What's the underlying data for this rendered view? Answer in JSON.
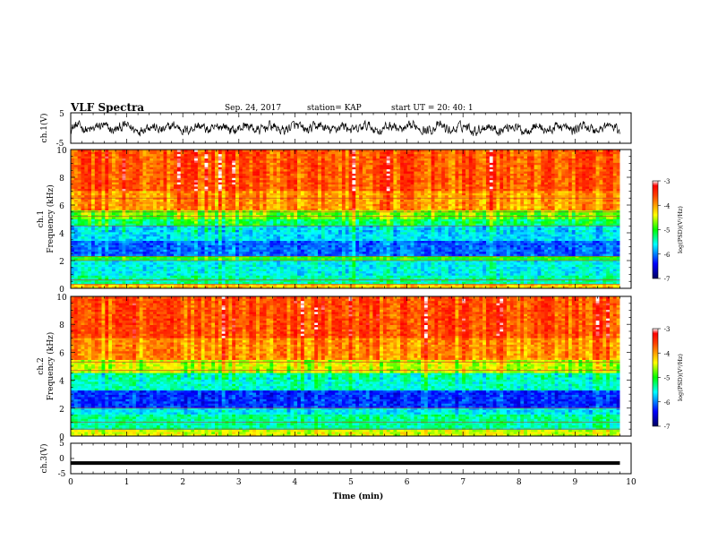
{
  "header": {
    "title": "VLF Spectra",
    "date": "Sep. 24, 2017",
    "station": "station= KAP",
    "start_ut": "start  UT  =    20: 40: 1"
  },
  "colors": {
    "colormap": [
      "#000080",
      "#0000ff",
      "#00ffff",
      "#00ff00",
      "#ffff00",
      "#ff8000",
      "#ff0000",
      "#ffffff"
    ],
    "trace": "#000000"
  },
  "chart_data": [
    {
      "type": "line",
      "id": "ch1-waveform",
      "ylabel": "ch.1(V)",
      "ylim": [
        -5,
        5
      ],
      "yticks": [
        "5",
        "-5"
      ],
      "xlim": [
        0,
        10
      ],
      "note_series": "noisy broadband waveform, amplitude mostly within -2..2 V with excursions toward +2 and -3"
    },
    {
      "type": "heatmap",
      "id": "ch1-spectrogram",
      "ylabel": "ch.1\nFrequency (kHz)",
      "ylim": [
        0,
        10
      ],
      "yticks": [
        "0",
        "2",
        "4",
        "6",
        "8",
        "10"
      ],
      "xlim": [
        0,
        10
      ],
      "colorbar": {
        "label": "log(PSD)(V²/Hz)",
        "range": [
          -7,
          -3
        ],
        "ticks": [
          "-3",
          "-4",
          "-5",
          "-6",
          "-7"
        ]
      },
      "bands": [
        {
          "f_khz": [
            0,
            0.3
          ],
          "logpsd": -4.2
        },
        {
          "f_khz": [
            0.3,
            1.0
          ],
          "logpsd": -5.4
        },
        {
          "f_khz": [
            1.0,
            2.0
          ],
          "logpsd": -5.6
        },
        {
          "f_khz": [
            2.0,
            2.4
          ],
          "logpsd": -5.0
        },
        {
          "f_khz": [
            2.4,
            3.5
          ],
          "logpsd": -6.1
        },
        {
          "f_khz": [
            3.5,
            4.5
          ],
          "logpsd": -5.7
        },
        {
          "f_khz": [
            4.5,
            5.0
          ],
          "logpsd": -5.2
        },
        {
          "f_khz": [
            5.0,
            5.6
          ],
          "logpsd": -4.8
        },
        {
          "f_khz": [
            5.6,
            7.0
          ],
          "logpsd": -4.0
        },
        {
          "f_khz": [
            7.0,
            10.0
          ],
          "logpsd": -3.7
        }
      ],
      "lines_khz": [
        0.3,
        0.6,
        2.0,
        2.3,
        4.5,
        5.2,
        5.5,
        6.5,
        10.0
      ]
    },
    {
      "type": "heatmap",
      "id": "ch2-spectrogram",
      "ylabel": "ch.2\nFrequency (kHz)",
      "ylim": [
        0,
        10
      ],
      "yticks": [
        "0",
        "2",
        "4",
        "6",
        "8",
        "10"
      ],
      "xlim": [
        0,
        10
      ],
      "colorbar": {
        "label": "log(PSD)(V²/Hz)",
        "range": [
          -7,
          -3
        ],
        "ticks": [
          "-3",
          "-4",
          "-5",
          "-6",
          "-7"
        ]
      },
      "bands": [
        {
          "f_khz": [
            0,
            0.4
          ],
          "logpsd": -4.5
        },
        {
          "f_khz": [
            0.4,
            1.5
          ],
          "logpsd": -5.4
        },
        {
          "f_khz": [
            1.5,
            2.0
          ],
          "logpsd": -5.7
        },
        {
          "f_khz": [
            2.0,
            3.3
          ],
          "logpsd": -6.3
        },
        {
          "f_khz": [
            3.3,
            4.5
          ],
          "logpsd": -5.5
        },
        {
          "f_khz": [
            4.5,
            5.5
          ],
          "logpsd": -4.6
        },
        {
          "f_khz": [
            5.5,
            7.0
          ],
          "logpsd": -4.0
        },
        {
          "f_khz": [
            7.0,
            10.0
          ],
          "logpsd": -3.7
        }
      ],
      "lines_khz": [
        0.5,
        1.0,
        2.0,
        4.7,
        5.3
      ]
    },
    {
      "type": "line",
      "id": "ch3-waveform",
      "ylabel": "ch.3(V)",
      "ylim": [
        -5,
        5
      ],
      "yticks": [
        "5",
        "0",
        "-5"
      ],
      "xlim": [
        0,
        10
      ],
      "xlabel": "Time (min)",
      "xticks": [
        "0",
        "1",
        "2",
        "3",
        "4",
        "5",
        "6",
        "7",
        "8",
        "9",
        "10"
      ],
      "series": [
        {
          "x": [
            0,
            9.8
          ],
          "y": [
            -1.5,
            -1.5
          ]
        }
      ]
    }
  ]
}
